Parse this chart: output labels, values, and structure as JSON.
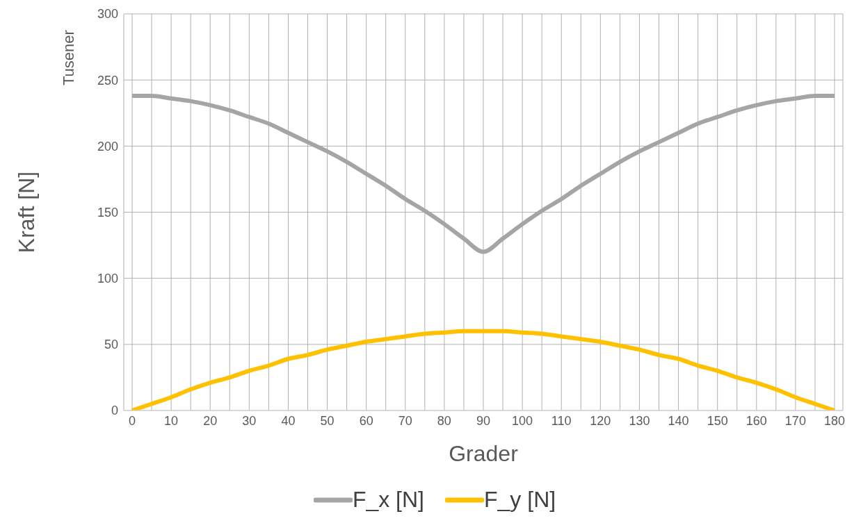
{
  "chart_data": {
    "type": "line",
    "xlabel": "Grader",
    "ylabel": "Kraft [N]",
    "annotations": [
      "Tusener"
    ],
    "categories": [
      "0",
      null,
      "10",
      null,
      "20",
      null,
      "30",
      null,
      "40",
      null,
      "50",
      null,
      "60",
      null,
      "70",
      null,
      "80",
      null,
      "90",
      null,
      "100",
      null,
      "110",
      null,
      "120",
      null,
      "130",
      null,
      "140",
      null,
      "150",
      null,
      "160",
      null,
      "170",
      null,
      "180"
    ],
    "series": [
      {
        "name": "F_x [N]",
        "color": "#a5a5a5",
        "values": [
          238,
          238,
          236,
          234,
          231,
          227,
          222,
          217,
          210,
          203,
          196,
          188,
          179,
          170,
          160,
          151,
          141,
          130,
          120,
          130,
          141,
          151,
          160,
          170,
          179,
          188,
          196,
          203,
          210,
          217,
          222,
          227,
          231,
          234,
          236,
          238,
          238
        ]
      },
      {
        "name": "F_y [N]",
        "color": "#ffc000",
        "values": [
          0,
          5,
          10,
          16,
          21,
          25,
          30,
          34,
          39,
          42,
          46,
          49,
          52,
          54,
          56,
          58,
          59,
          60,
          60,
          60,
          59,
          58,
          56,
          54,
          52,
          49,
          46,
          42,
          39,
          34,
          30,
          25,
          21,
          16,
          10,
          5,
          0
        ]
      }
    ],
    "ylim": [
      0,
      300
    ],
    "yticks": [
      0,
      50,
      100,
      150,
      200,
      250,
      300
    ],
    "grid": true,
    "legend": "bottom",
    "marker": "none",
    "line_style": "solid"
  }
}
